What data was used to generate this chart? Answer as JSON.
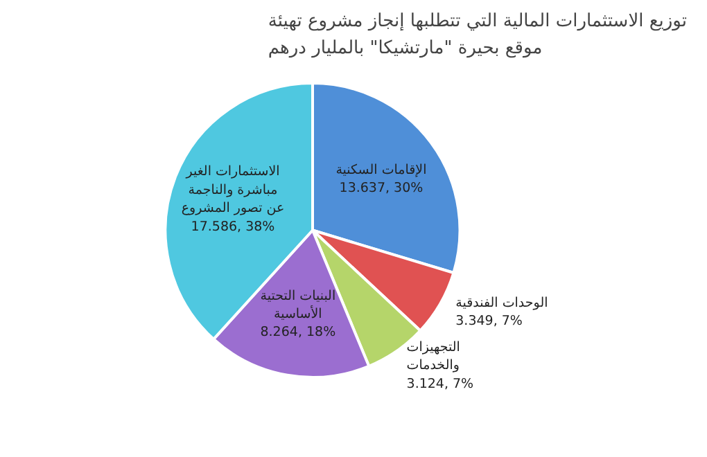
{
  "chart_data": {
    "type": "pie",
    "title": "توزيع الاستثمارات المالية التي تتطلبها إنجاز مشروع تهيئة موقع بحيرة \"مارتشيكا\" بالمليار درهم",
    "categories": [
      "الإقامات السكنية",
      "الوحدات الفندقية",
      "التجهيزات والخدمات",
      "البنيات التحتية الأساسية",
      "الاستثمارات الغير مباشرة والناجمة عن تصور المشروع"
    ],
    "values": [
      13.637,
      3.349,
      3.124,
      8.264,
      17.586
    ],
    "value_labels": [
      "13.637, 30%",
      "3.349, 7%",
      "3.124, 7%",
      "8.264, 18%",
      "17.586, 38%"
    ],
    "colors": [
      "#4f8fd8",
      "#e05252",
      "#b5d56a",
      "#9b6ed0",
      "#4fc8e0"
    ]
  }
}
